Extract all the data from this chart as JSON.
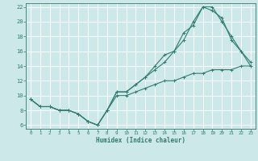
{
  "xlabel": "Humidex (Indice chaleur)",
  "xlim": [
    -0.5,
    23.5
  ],
  "ylim": [
    5.5,
    22.5
  ],
  "yticks": [
    6,
    8,
    10,
    12,
    14,
    16,
    18,
    20,
    22
  ],
  "xticks": [
    0,
    1,
    2,
    3,
    4,
    5,
    6,
    7,
    8,
    9,
    10,
    11,
    12,
    13,
    14,
    15,
    16,
    17,
    18,
    19,
    20,
    21,
    22,
    23
  ],
  "bg_color": "#cce8e8",
  "grid_color": "#ffffff",
  "line_color": "#2e7d6e",
  "line1_x": [
    0,
    1,
    2,
    3,
    4,
    5,
    6,
    7,
    8,
    9,
    10,
    11,
    12,
    13,
    14,
    15,
    16,
    17,
    18,
    19,
    20,
    21,
    22,
    23
  ],
  "line1_y": [
    9.5,
    8.5,
    8.5,
    8.0,
    8.0,
    7.5,
    6.5,
    6.0,
    8.0,
    10.5,
    10.5,
    11.5,
    12.5,
    14.0,
    15.5,
    16.0,
    18.5,
    19.5,
    22.0,
    22.0,
    20.0,
    18.0,
    16.0,
    14.0
  ],
  "line2_x": [
    0,
    1,
    2,
    3,
    4,
    5,
    6,
    7,
    8,
    9,
    10,
    11,
    12,
    13,
    14,
    15,
    16,
    17,
    18,
    19,
    20,
    21,
    22,
    23
  ],
  "line2_y": [
    9.5,
    8.5,
    8.5,
    8.0,
    8.0,
    7.5,
    6.5,
    6.0,
    8.0,
    10.5,
    10.5,
    11.5,
    12.5,
    13.5,
    14.5,
    16.0,
    17.5,
    20.0,
    22.0,
    21.5,
    20.5,
    17.5,
    16.0,
    14.5
  ],
  "line3_x": [
    0,
    1,
    2,
    3,
    4,
    5,
    6,
    7,
    8,
    9,
    10,
    11,
    12,
    13,
    14,
    15,
    16,
    17,
    18,
    19,
    20,
    21,
    22,
    23
  ],
  "line3_y": [
    9.5,
    8.5,
    8.5,
    8.0,
    8.0,
    7.5,
    6.5,
    6.0,
    8.0,
    10.0,
    10.0,
    10.5,
    11.0,
    11.5,
    12.0,
    12.0,
    12.5,
    13.0,
    13.0,
    13.5,
    13.5,
    13.5,
    14.0,
    14.0
  ]
}
